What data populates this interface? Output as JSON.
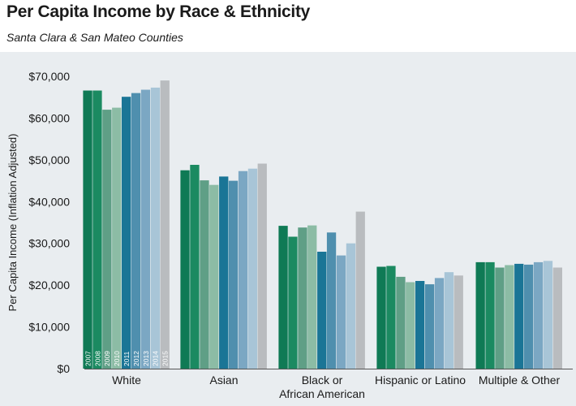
{
  "header": {
    "title": "Per Capita Income by Race & Ethnicity",
    "subtitle": "Santa Clara & San Mateo Counties"
  },
  "chart_data": {
    "type": "bar",
    "title": "Per Capita Income by Race & Ethnicity",
    "subtitle": "Santa Clara & San Mateo Counties",
    "xlabel": "",
    "ylabel": "Per Capita Income (Inflation Adjusted)",
    "ylim": [
      0,
      70000
    ],
    "yticks": [
      0,
      10000,
      20000,
      30000,
      40000,
      50000,
      60000,
      70000
    ],
    "ytick_labels": [
      "$0",
      "$10,000",
      "$20,000",
      "$30,000",
      "$40,000",
      "$50,000",
      "$60,000",
      "$70,000"
    ],
    "grid": false,
    "legend": "year labels printed inside the first group's bars",
    "categories": [
      [
        "White"
      ],
      [
        "Asian"
      ],
      [
        "Black or",
        "African American"
      ],
      [
        "Hispanic or Latino"
      ],
      [
        "Multiple & Other"
      ]
    ],
    "series": [
      {
        "name": "2007",
        "color": "#0f7a55",
        "values": [
          66600,
          47500,
          34200,
          24400,
          25500
        ]
      },
      {
        "name": "2008",
        "color": "#1b8a61",
        "values": [
          66600,
          48800,
          31600,
          24600,
          25500
        ]
      },
      {
        "name": "2009",
        "color": "#5f9f86",
        "values": [
          62000,
          45100,
          33800,
          22000,
          24200
        ]
      },
      {
        "name": "2010",
        "color": "#8cbca5",
        "values": [
          62500,
          44000,
          34300,
          20700,
          24800
        ]
      },
      {
        "name": "2011",
        "color": "#1a7596",
        "values": [
          65100,
          46000,
          28000,
          21000,
          25100
        ]
      },
      {
        "name": "2012",
        "color": "#4f8fae",
        "values": [
          66000,
          45000,
          32600,
          20200,
          24900
        ]
      },
      {
        "name": "2013",
        "color": "#7ba7c3",
        "values": [
          66800,
          47300,
          27100,
          21700,
          25500
        ]
      },
      {
        "name": "2014",
        "color": "#a8c5d7",
        "values": [
          67300,
          47900,
          30000,
          23100,
          25800
        ]
      },
      {
        "name": "2015",
        "color": "#b9bcbf",
        "values": [
          69000,
          49100,
          37600,
          22300,
          24200
        ]
      }
    ]
  }
}
